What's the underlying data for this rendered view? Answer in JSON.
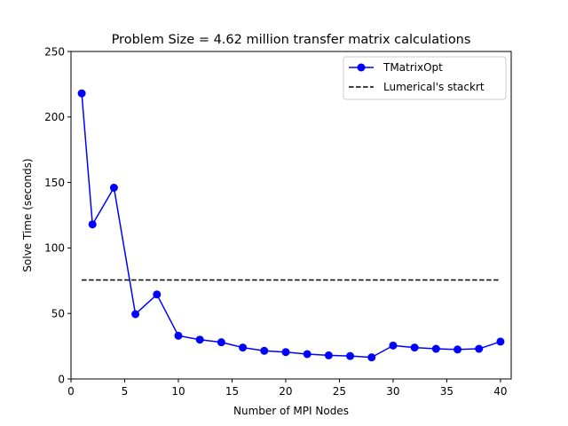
{
  "chart_data": {
    "type": "line",
    "title": "Problem Size = 4.62 million transfer matrix calculations",
    "xlabel": "Number of MPI Nodes",
    "ylabel": "Solve Time (seconds)",
    "xlim": [
      0,
      41
    ],
    "ylim": [
      0,
      250
    ],
    "xticks": [
      0,
      5,
      10,
      15,
      20,
      25,
      30,
      35,
      40
    ],
    "yticks": [
      0,
      50,
      100,
      150,
      200,
      250
    ],
    "grid": false,
    "legend_position": "top-right",
    "series": [
      {
        "name": "TMatrixOpt",
        "style": "solid line with circle markers",
        "color": "#0000ff",
        "x": [
          1,
          2,
          4,
          6,
          8,
          10,
          12,
          14,
          16,
          18,
          20,
          22,
          24,
          26,
          28,
          30,
          32,
          34,
          36,
          38,
          40
        ],
        "y": [
          218,
          118,
          146,
          49.5,
          64.5,
          33,
          30,
          28,
          24,
          21.5,
          20.5,
          19,
          18,
          17.5,
          16.5,
          25.5,
          24,
          23,
          22.5,
          23,
          28.5
        ]
      },
      {
        "name": "Lumerical's stackrt",
        "style": "dashed line",
        "color": "#000000",
        "x": [
          1,
          40
        ],
        "y": [
          75.5,
          75.5
        ]
      }
    ]
  }
}
